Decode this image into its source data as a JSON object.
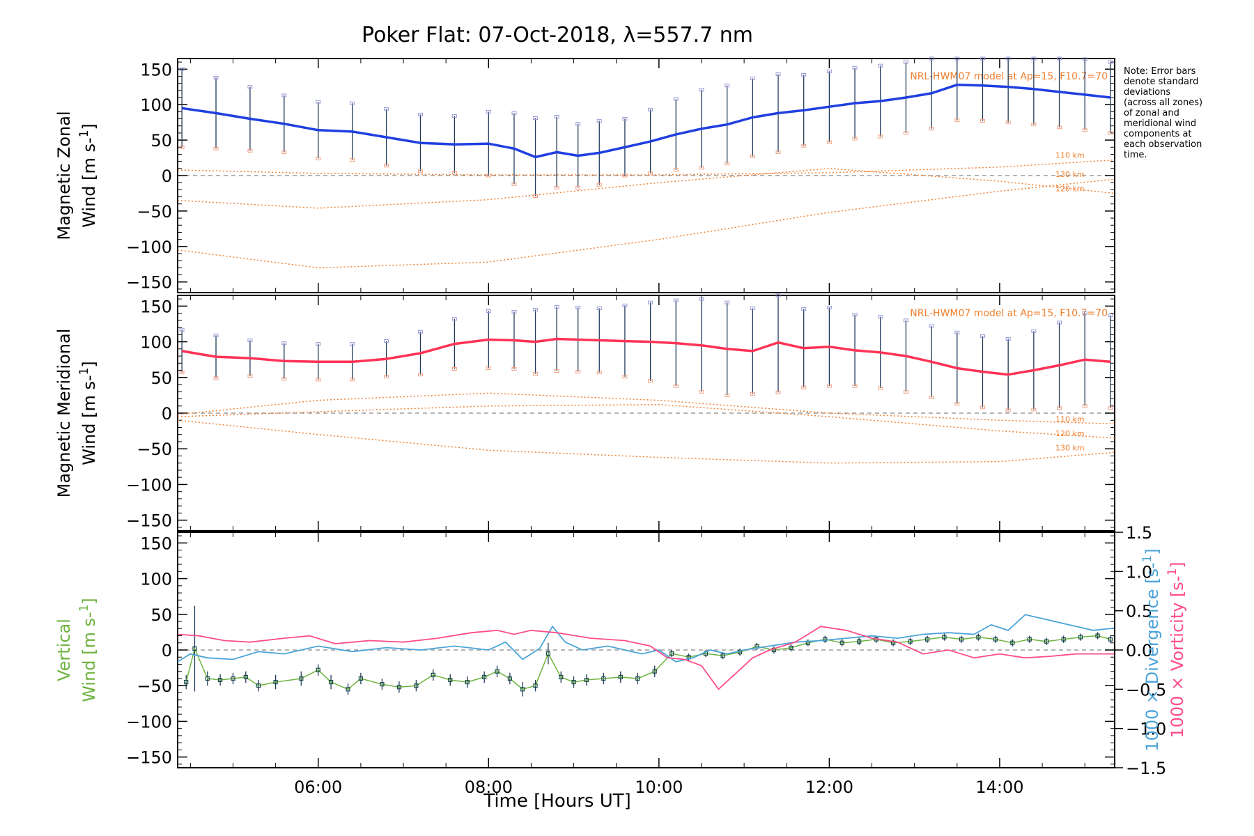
{
  "chart_data": {
    "type": "line",
    "title": "Poker Flat: 07-Oct-2018, λ=557.7 nm",
    "xlabel": "Time [Hours UT]",
    "x_unit": "hours UT",
    "xlim": [
      4.35,
      15.35
    ],
    "xticks": [
      6,
      8,
      10,
      12,
      14
    ],
    "xtick_labels": [
      "06:00",
      "08:00",
      "10:00",
      "12:00",
      "14:00"
    ],
    "note": "Note: Error bars denote standard deviations (across all zones) of zonal and meridional wind components at each observation time.",
    "note_lines": [
      "Note: Error bars",
      "denote standard",
      "deviations",
      "(across all zones)",
      "of zonal and",
      "meridional wind",
      "components at",
      "each observation",
      "time."
    ],
    "colors": {
      "zonal": "#1f3fe0",
      "zonal_late": "#3a9ae0",
      "meridional": "#ff3355",
      "vertical": "#6db33f",
      "vertical_marker": "#1a4a4a",
      "divergence": "#4aa3d8",
      "vorticity": "#ff4d88",
      "model": "#f08030",
      "errorbar": "#1f3a5a",
      "zone_points": "#9a9ad8",
      "zero_line": "#888888"
    },
    "panels": [
      {
        "id": "zonal",
        "ylabel_lines": [
          "Magnetic Zonal",
          "Wind [m s⁻¹]"
        ],
        "ylim": [
          -165,
          165
        ],
        "yticks": [
          -150,
          -100,
          -50,
          0,
          50,
          100,
          150
        ],
        "model_label": "NRL-HWM07 model at Ap=15, F10.7=70",
        "series": [
          {
            "name": "Magnetic Zonal Wind",
            "x": [
              4.4,
              4.8,
              5.2,
              5.6,
              6.0,
              6.4,
              6.8,
              7.2,
              7.6,
              8.0,
              8.3,
              8.55,
              8.8,
              9.05,
              9.3,
              9.6,
              9.9,
              10.2,
              10.5,
              10.8,
              11.1,
              11.4,
              11.7,
              12.0,
              12.3,
              12.6,
              12.9,
              13.2,
              13.5,
              13.8,
              14.1,
              14.4,
              14.7,
              15.0,
              15.3
            ],
            "y": [
              95,
              88,
              80,
              73,
              64,
              62,
              54,
              46,
              44,
              45,
              38,
              26,
              33,
              28,
              32,
              40,
              48,
              58,
              66,
              72,
              82,
              88,
              92,
              97,
              102,
              105,
              110,
              116,
              128,
              127,
              125,
              122,
              118,
              114,
              110
            ],
            "err": [
              55,
              50,
              45,
              40,
              40,
              40,
              40,
              40,
              40,
              45,
              50,
              55,
              50,
              45,
              45,
              40,
              45,
              50,
              55,
              55,
              55,
              55,
              50,
              50,
              50,
              50,
              50,
              50,
              50,
              50,
              50,
              50,
              50,
              50,
              50
            ]
          }
        ],
        "model_lines": [
          {
            "name": "110 km",
            "x": [
              4.35,
              6.0,
              8.0,
              10.0,
              12.0,
              14.0,
              15.35
            ],
            "y": [
              8,
              3,
              1,
              1,
              4,
              12,
              22
            ]
          },
          {
            "name": "120 km",
            "x": [
              4.35,
              6.0,
              8.0,
              10.0,
              12.0,
              14.0,
              15.35
            ],
            "y": [
              -35,
              -46,
              -34,
              -10,
              10,
              -8,
              -25
            ]
          },
          {
            "name": "130 km",
            "x": [
              4.35,
              6.0,
              8.0,
              10.0,
              12.0,
              14.0,
              15.35
            ],
            "y": [
              -105,
              -130,
              -122,
              -90,
              -52,
              -22,
              -5
            ]
          }
        ]
      },
      {
        "id": "meridional",
        "ylabel_lines": [
          "Magnetic Meridional",
          "Wind [m s⁻¹]"
        ],
        "ylim": [
          -165,
          165
        ],
        "yticks": [
          -150,
          -100,
          -50,
          0,
          50,
          100,
          150
        ],
        "model_label": "NRL-HWM07 model at Ap=15, F10.7=70",
        "series": [
          {
            "name": "Magnetic Meridional Wind",
            "x": [
              4.4,
              4.8,
              5.2,
              5.6,
              6.0,
              6.4,
              6.8,
              7.2,
              7.6,
              8.0,
              8.3,
              8.55,
              8.8,
              9.05,
              9.3,
              9.6,
              9.9,
              10.2,
              10.5,
              10.8,
              11.1,
              11.4,
              11.7,
              12.0,
              12.3,
              12.6,
              12.9,
              13.2,
              13.5,
              13.8,
              14.1,
              14.4,
              14.7,
              15.0,
              15.3
            ],
            "y": [
              87,
              79,
              77,
              73,
              72,
              72,
              76,
              84,
              97,
              103,
              102,
              100,
              104,
              103,
              102,
              101,
              100,
              98,
              95,
              90,
              87,
              99,
              91,
              93,
              88,
              85,
              80,
              72,
              63,
              58,
              54,
              60,
              67,
              75,
              72
            ],
            "err": [
              30,
              30,
              25,
              25,
              25,
              25,
              25,
              30,
              35,
              40,
              40,
              45,
              45,
              45,
              45,
              50,
              55,
              60,
              65,
              65,
              60,
              70,
              55,
              55,
              50,
              50,
              50,
              50,
              50,
              50,
              50,
              55,
              60,
              65,
              65
            ]
          }
        ],
        "model_lines": [
          {
            "name": "110 km",
            "x": [
              4.35,
              6.0,
              8.0,
              10.0,
              12.0,
              14.0,
              15.35
            ],
            "y": [
              -2,
              18,
              28,
              18,
              0,
              -10,
              -15
            ]
          },
          {
            "name": "120 km",
            "x": [
              4.35,
              6.0,
              8.0,
              10.0,
              12.0,
              14.0,
              15.35
            ],
            "y": [
              -5,
              2,
              10,
              12,
              -5,
              -25,
              -35
            ]
          },
          {
            "name": "130 km",
            "x": [
              4.35,
              6.0,
              8.0,
              10.0,
              12.0,
              14.0,
              15.35
            ],
            "y": [
              -10,
              -30,
              -52,
              -62,
              -70,
              -68,
              -55
            ]
          }
        ]
      },
      {
        "id": "vertical",
        "ylabel_lines": [
          "Vertical",
          "Wind [m s⁻¹]"
        ],
        "ylim": [
          -165,
          165
        ],
        "yticks": [
          -150,
          -100,
          -50,
          0,
          50,
          100,
          150
        ],
        "right_ylim": [
          -1.5,
          1.5
        ],
        "right_yticks": [
          -1.5,
          -1.0,
          -0.5,
          0.0,
          0.5,
          1.0,
          1.5
        ],
        "right_ytick_labels": [
          "−1.5",
          "−1.0",
          "−0.5",
          "0.0",
          "0.5",
          "1.0",
          "1.5"
        ],
        "right_label_divergence": "1000 × Divergence [s⁻¹]",
        "right_label_vorticity": "1000 × Vorticity [s⁻¹]",
        "series": [
          {
            "name": "Vertical Wind",
            "axis": "left",
            "x": [
              4.45,
              4.55,
              4.7,
              4.85,
              5.0,
              5.15,
              5.3,
              5.5,
              5.8,
              6.0,
              6.15,
              6.35,
              6.5,
              6.75,
              6.95,
              7.15,
              7.35,
              7.55,
              7.75,
              7.95,
              8.1,
              8.25,
              8.4,
              8.55,
              8.7,
              8.85,
              9.0,
              9.15,
              9.35,
              9.55,
              9.75,
              9.95,
              10.15,
              10.35,
              10.55,
              10.75,
              10.95,
              11.15,
              11.35,
              11.55,
              11.75,
              11.95,
              12.15,
              12.35,
              12.55,
              12.75,
              12.95,
              13.15,
              13.35,
              13.55,
              13.75,
              13.95,
              14.15,
              14.35,
              14.55,
              14.75,
              14.95,
              15.15,
              15.3
            ],
            "y": [
              -45,
              2,
              -40,
              -42,
              -40,
              -38,
              -50,
              -45,
              -40,
              -28,
              -45,
              -55,
              -40,
              -48,
              -52,
              -50,
              -35,
              -42,
              -45,
              -38,
              -30,
              -40,
              -55,
              -50,
              -5,
              -38,
              -45,
              -42,
              -40,
              -38,
              -40,
              -30,
              -5,
              -10,
              -5,
              -8,
              -3,
              5,
              0,
              3,
              10,
              15,
              10,
              12,
              15,
              10,
              12,
              15,
              18,
              15,
              18,
              15,
              10,
              15,
              12,
              15,
              18,
              20,
              15
            ],
            "err": [
              10,
              60,
              10,
              8,
              8,
              8,
              8,
              10,
              10,
              8,
              10,
              8,
              8,
              8,
              8,
              8,
              8,
              8,
              8,
              8,
              8,
              8,
              10,
              8,
              15,
              8,
              8,
              8,
              8,
              8,
              8,
              8,
              5,
              5,
              5,
              5,
              5,
              5,
              5,
              5,
              5,
              5,
              5,
              5,
              5,
              5,
              5,
              5,
              5,
              5,
              5,
              5,
              5,
              5,
              5,
              5,
              5,
              5,
              5
            ]
          },
          {
            "name": "1000 × Divergence",
            "axis": "right",
            "x": [
              4.35,
              4.5,
              4.7,
              5.0,
              5.3,
              5.6,
              6.0,
              6.4,
              6.8,
              7.2,
              7.6,
              8.0,
              8.2,
              8.4,
              8.6,
              8.75,
              8.9,
              9.1,
              9.4,
              9.8,
              10.0,
              10.2,
              10.4,
              10.6,
              10.8,
              11.0,
              11.3,
              11.6,
              11.9,
              12.2,
              12.5,
              12.8,
              13.1,
              13.4,
              13.7,
              13.9,
              14.1,
              14.3,
              14.5,
              14.7,
              14.9,
              15.1,
              15.35
            ],
            "y": [
              -0.15,
              -0.05,
              -0.1,
              -0.12,
              -0.02,
              -0.05,
              0.05,
              -0.02,
              0.03,
              0.0,
              0.05,
              0.0,
              0.1,
              -0.12,
              0.02,
              0.3,
              0.1,
              0.0,
              0.05,
              -0.05,
              0.0,
              -0.15,
              -0.1,
              0.0,
              -0.05,
              0.0,
              0.05,
              0.1,
              0.12,
              0.15,
              0.18,
              0.15,
              0.2,
              0.22,
              0.2,
              0.32,
              0.25,
              0.45,
              0.4,
              0.35,
              0.3,
              0.25,
              0.28
            ]
          },
          {
            "name": "1000 × Vorticity",
            "axis": "right",
            "x": [
              4.35,
              4.6,
              4.9,
              5.2,
              5.6,
              5.9,
              6.2,
              6.6,
              7.0,
              7.4,
              7.8,
              8.1,
              8.3,
              8.5,
              8.8,
              9.2,
              9.6,
              9.9,
              10.1,
              10.3,
              10.5,
              10.7,
              10.9,
              11.1,
              11.3,
              11.6,
              11.9,
              12.2,
              12.5,
              12.8,
              13.1,
              13.4,
              13.7,
              14.0,
              14.3,
              14.6,
              14.9,
              15.1,
              15.35
            ],
            "y": [
              0.2,
              0.18,
              0.12,
              0.1,
              0.15,
              0.18,
              0.08,
              0.12,
              0.1,
              0.15,
              0.22,
              0.25,
              0.2,
              0.25,
              0.22,
              0.15,
              0.12,
              0.05,
              -0.1,
              -0.12,
              -0.2,
              -0.5,
              -0.3,
              -0.1,
              0.0,
              0.1,
              0.3,
              0.25,
              0.15,
              0.1,
              -0.05,
              0.0,
              -0.1,
              -0.05,
              -0.1,
              -0.08,
              -0.05,
              -0.05,
              -0.05
            ]
          }
        ]
      }
    ]
  }
}
